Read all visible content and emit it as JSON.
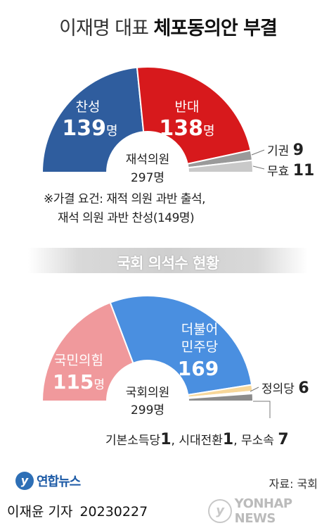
{
  "title": {
    "light": "이재명 대표",
    "bold": "체포동의안 부결"
  },
  "vote": {
    "center_label": "재석의원",
    "center_value": "297명",
    "segments": [
      {
        "name": "찬성",
        "value": 139,
        "unit": "명",
        "color": "#2f5d9e"
      },
      {
        "name": "반대",
        "value": 138,
        "unit": "명",
        "color": "#d7191c"
      },
      {
        "name": "기권",
        "value": 9,
        "unit": "",
        "color": "#9a9a9a"
      },
      {
        "name": "무효",
        "value": 11,
        "unit": "",
        "color": "#c9c9c9"
      }
    ],
    "note_line1": "※가결 요건: 재적 의원 과반 출석,",
    "note_line2": "재석 의원 과반 찬성(149명)"
  },
  "banner": "국회 의석수 현황",
  "seats": {
    "center_label": "국회의원",
    "center_value": "299명",
    "segments": [
      {
        "name": "국민의힘",
        "value": 115,
        "unit": "명",
        "color": "#f0999c"
      },
      {
        "name": "더불어\n민주당",
        "value": 169,
        "unit": "",
        "color": "#4a8fe0"
      },
      {
        "name": "정의당",
        "value": 6,
        "unit": "",
        "color": "#f7d79a"
      },
      {
        "name": "기본소득당",
        "value": 1,
        "unit": "",
        "color": "#7fd3c8"
      },
      {
        "name": "시대전환",
        "value": 1,
        "unit": "",
        "color": "#6a6a6a"
      },
      {
        "name": "무소속",
        "value": 7,
        "unit": "",
        "color": "#8c8c8c"
      }
    ],
    "small_parties_line": {
      "a_label": "기본소득당",
      "a_value": "1",
      "b_label": ", 시대전환",
      "b_value": "1",
      "c_label": ", 무소속",
      "c_value": "7"
    }
  },
  "chart_data": [
    {
      "type": "pie",
      "categories": [
        "찬성",
        "반대",
        "기권",
        "무효"
      ],
      "values": [
        139,
        138,
        9,
        11
      ]
    },
    {
      "type": "pie",
      "categories": [
        "국민의힘",
        "더불어민주당",
        "정의당",
        "기본소득당",
        "시대전환",
        "무소속"
      ],
      "values": [
        115,
        169,
        6,
        1,
        1,
        7
      ]
    }
  ],
  "footer": {
    "logo_text": "연합뉴스",
    "source": "자료: 국회",
    "reporter": "이재윤 기자",
    "date": "20230227",
    "watermark": "YONHAP NEWS"
  }
}
